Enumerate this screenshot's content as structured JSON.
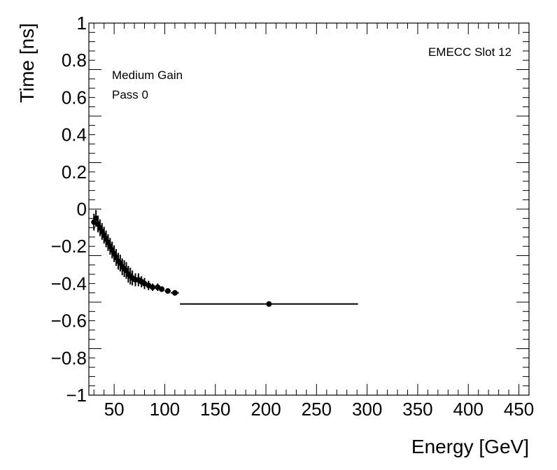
{
  "chart_data": {
    "type": "scatter",
    "xlabel": "Energy [GeV]",
    "ylabel": "Time [ns]",
    "xlim": [
      25,
      460
    ],
    "ylim": [
      -1,
      1
    ],
    "x_ticks": [
      50,
      100,
      150,
      200,
      250,
      300,
      350,
      400,
      450
    ],
    "y_ticks": [
      -1,
      -0.8,
      -0.6,
      -0.4,
      -0.2,
      0,
      0.2,
      0.4,
      0.6,
      0.8,
      1
    ],
    "x_tick_labels": [
      "50",
      "100",
      "150",
      "200",
      "250",
      "300",
      "350",
      "400",
      "450"
    ],
    "y_tick_labels": [
      "−1",
      "−0.8",
      "−0.6",
      "−0.4",
      "−0.2",
      "0",
      "0.2",
      "0.4",
      "0.6",
      "0.8",
      "1"
    ],
    "annotations": [
      "EMECC Slot 12",
      "Medium Gain",
      "Pass 0"
    ],
    "grid": false,
    "series": [
      {
        "marker": "circle",
        "color": "#000000",
        "points": [
          {
            "x": 30,
            "y": -0.07,
            "xerr": 0.5,
            "yerr": 0.045
          },
          {
            "x": 32,
            "y": -0.05,
            "xerr": 0.5,
            "yerr": 0.045
          },
          {
            "x": 34,
            "y": -0.08,
            "xerr": 0.5,
            "yerr": 0.045
          },
          {
            "x": 36,
            "y": -0.1,
            "xerr": 0.5,
            "yerr": 0.045
          },
          {
            "x": 38,
            "y": -0.12,
            "xerr": 0.5,
            "yerr": 0.045
          },
          {
            "x": 40,
            "y": -0.14,
            "xerr": 0.5,
            "yerr": 0.045
          },
          {
            "x": 42,
            "y": -0.16,
            "xerr": 0.5,
            "yerr": 0.045
          },
          {
            "x": 44,
            "y": -0.18,
            "xerr": 0.5,
            "yerr": 0.045
          },
          {
            "x": 46,
            "y": -0.2,
            "xerr": 0.5,
            "yerr": 0.045
          },
          {
            "x": 48,
            "y": -0.22,
            "xerr": 0.5,
            "yerr": 0.045
          },
          {
            "x": 50,
            "y": -0.24,
            "xerr": 0.5,
            "yerr": 0.045
          },
          {
            "x": 52,
            "y": -0.26,
            "xerr": 0.5,
            "yerr": 0.045
          },
          {
            "x": 54,
            "y": -0.28,
            "xerr": 0.5,
            "yerr": 0.045
          },
          {
            "x": 56,
            "y": -0.29,
            "xerr": 0.5,
            "yerr": 0.045
          },
          {
            "x": 58,
            "y": -0.31,
            "xerr": 0.5,
            "yerr": 0.045
          },
          {
            "x": 60,
            "y": -0.32,
            "xerr": 0.5,
            "yerr": 0.045
          },
          {
            "x": 62,
            "y": -0.33,
            "xerr": 0.5,
            "yerr": 0.045
          },
          {
            "x": 64,
            "y": -0.35,
            "xerr": 0.5,
            "yerr": 0.045
          },
          {
            "x": 66,
            "y": -0.36,
            "xerr": 0.5,
            "yerr": 0.045
          },
          {
            "x": 68,
            "y": -0.37,
            "xerr": 0.5,
            "yerr": 0.04
          },
          {
            "x": 71,
            "y": -0.38,
            "xerr": 0.5,
            "yerr": 0.035
          },
          {
            "x": 74,
            "y": -0.38,
            "xerr": 0.5,
            "yerr": 0.035
          },
          {
            "x": 77,
            "y": -0.39,
            "xerr": 0.5,
            "yerr": 0.03
          },
          {
            "x": 80,
            "y": -0.4,
            "xerr": 0.5,
            "yerr": 0.03
          },
          {
            "x": 84,
            "y": -0.41,
            "xerr": 0.5,
            "yerr": 0.025
          },
          {
            "x": 88,
            "y": -0.42,
            "xerr": 0.5,
            "yerr": 0.02
          },
          {
            "x": 93,
            "y": -0.42,
            "xerr": 1,
            "yerr": 0.02
          },
          {
            "x": 97,
            "y": -0.43,
            "xerr": 1,
            "yerr": 0.015
          },
          {
            "x": 103,
            "y": -0.44,
            "xerr": 3,
            "yerr": 0.012
          },
          {
            "x": 110,
            "y": -0.45,
            "xerr": 4,
            "yerr": 0.015
          },
          {
            "x": 203,
            "y": -0.51,
            "xerr": 88,
            "yerr": 0.005
          }
        ]
      }
    ]
  }
}
